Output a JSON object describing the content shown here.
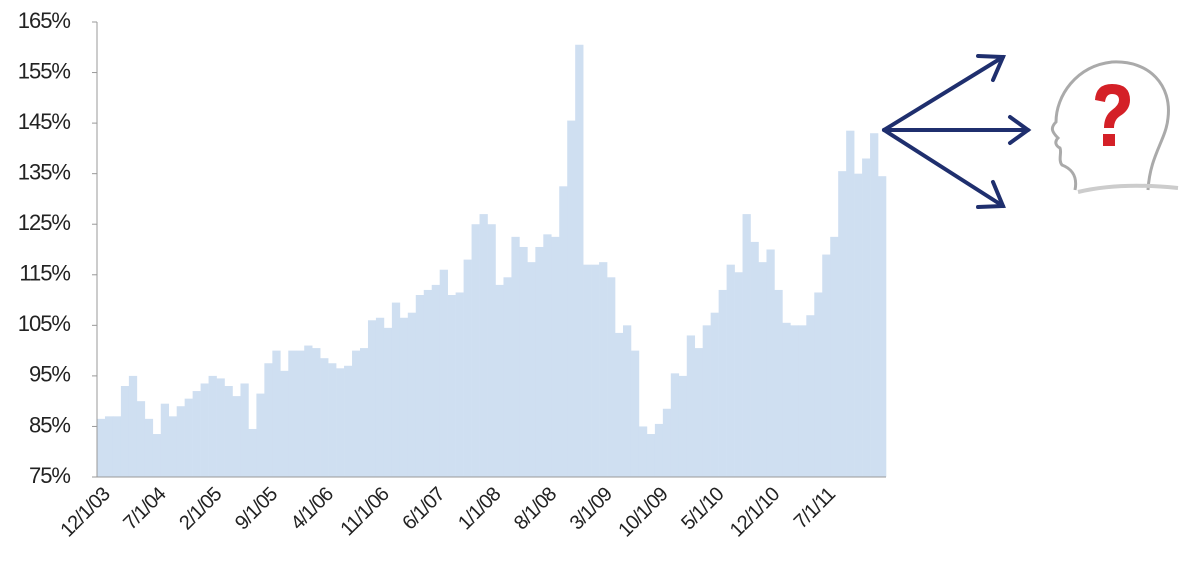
{
  "chart_data": {
    "type": "bar",
    "color": "#cfdff1",
    "categories": [
      "12/1/03",
      null,
      null,
      null,
      null,
      null,
      null,
      "7/1/04",
      null,
      null,
      null,
      null,
      null,
      null,
      "2/1/05",
      null,
      null,
      null,
      null,
      null,
      null,
      "9/1/05",
      null,
      null,
      null,
      null,
      null,
      null,
      "4/1/06",
      null,
      null,
      null,
      null,
      null,
      null,
      "11/1/06",
      null,
      null,
      null,
      null,
      null,
      null,
      "6/1/07",
      null,
      null,
      null,
      null,
      null,
      null,
      "1/1/08",
      null,
      null,
      null,
      null,
      null,
      null,
      "8/1/08",
      null,
      null,
      null,
      null,
      null,
      null,
      "3/1/09",
      null,
      null,
      null,
      null,
      null,
      null,
      "10/1/09",
      null,
      null,
      null,
      null,
      null,
      null,
      "5/1/10",
      null,
      null,
      null,
      null,
      null,
      null,
      "12/1/10",
      null,
      null,
      null,
      null,
      null,
      null,
      "7/1/11",
      null,
      null,
      null,
      null,
      null,
      null,
      null
    ],
    "values": [
      86.5,
      87,
      87,
      93,
      95,
      90,
      86.5,
      83.5,
      89.5,
      87,
      89,
      90.5,
      92,
      93.5,
      95,
      94.5,
      93,
      91,
      93.5,
      84.5,
      91.5,
      97.5,
      100,
      96,
      100,
      100,
      101,
      100.5,
      98.5,
      97.5,
      96.5,
      97,
      100,
      100.5,
      106,
      106.5,
      104.5,
      109.5,
      106.5,
      107.5,
      111,
      112,
      113,
      116,
      111,
      111.5,
      118,
      125,
      127,
      125,
      113,
      114.5,
      122.5,
      120.5,
      117.5,
      120.5,
      123,
      122.5,
      132.5,
      145.5,
      160.5,
      117,
      117,
      117.5,
      114.5,
      103.5,
      105,
      100,
      85,
      83.5,
      85.5,
      88.5,
      95.5,
      95,
      103,
      100.5,
      105,
      107.5,
      112,
      117,
      115.5,
      127,
      121.5,
      117.5,
      120,
      112,
      105.5,
      105,
      105,
      107,
      111.5,
      119,
      122.5,
      135.5,
      143.5,
      135,
      138,
      143,
      134.5
    ],
    "ylim": [
      75,
      165
    ],
    "yticks": [
      {
        "value": 75,
        "label": "75%"
      },
      {
        "value": 85,
        "label": "85%"
      },
      {
        "value": 95,
        "label": "95%"
      },
      {
        "value": 105,
        "label": "105%"
      },
      {
        "value": 115,
        "label": "115%"
      },
      {
        "value": 125,
        "label": "125%"
      },
      {
        "value": 135,
        "label": "135%"
      },
      {
        "value": 145,
        "label": "145%"
      },
      {
        "value": 155,
        "label": "155%"
      },
      {
        "value": 165,
        "label": "165%"
      }
    ]
  }
}
